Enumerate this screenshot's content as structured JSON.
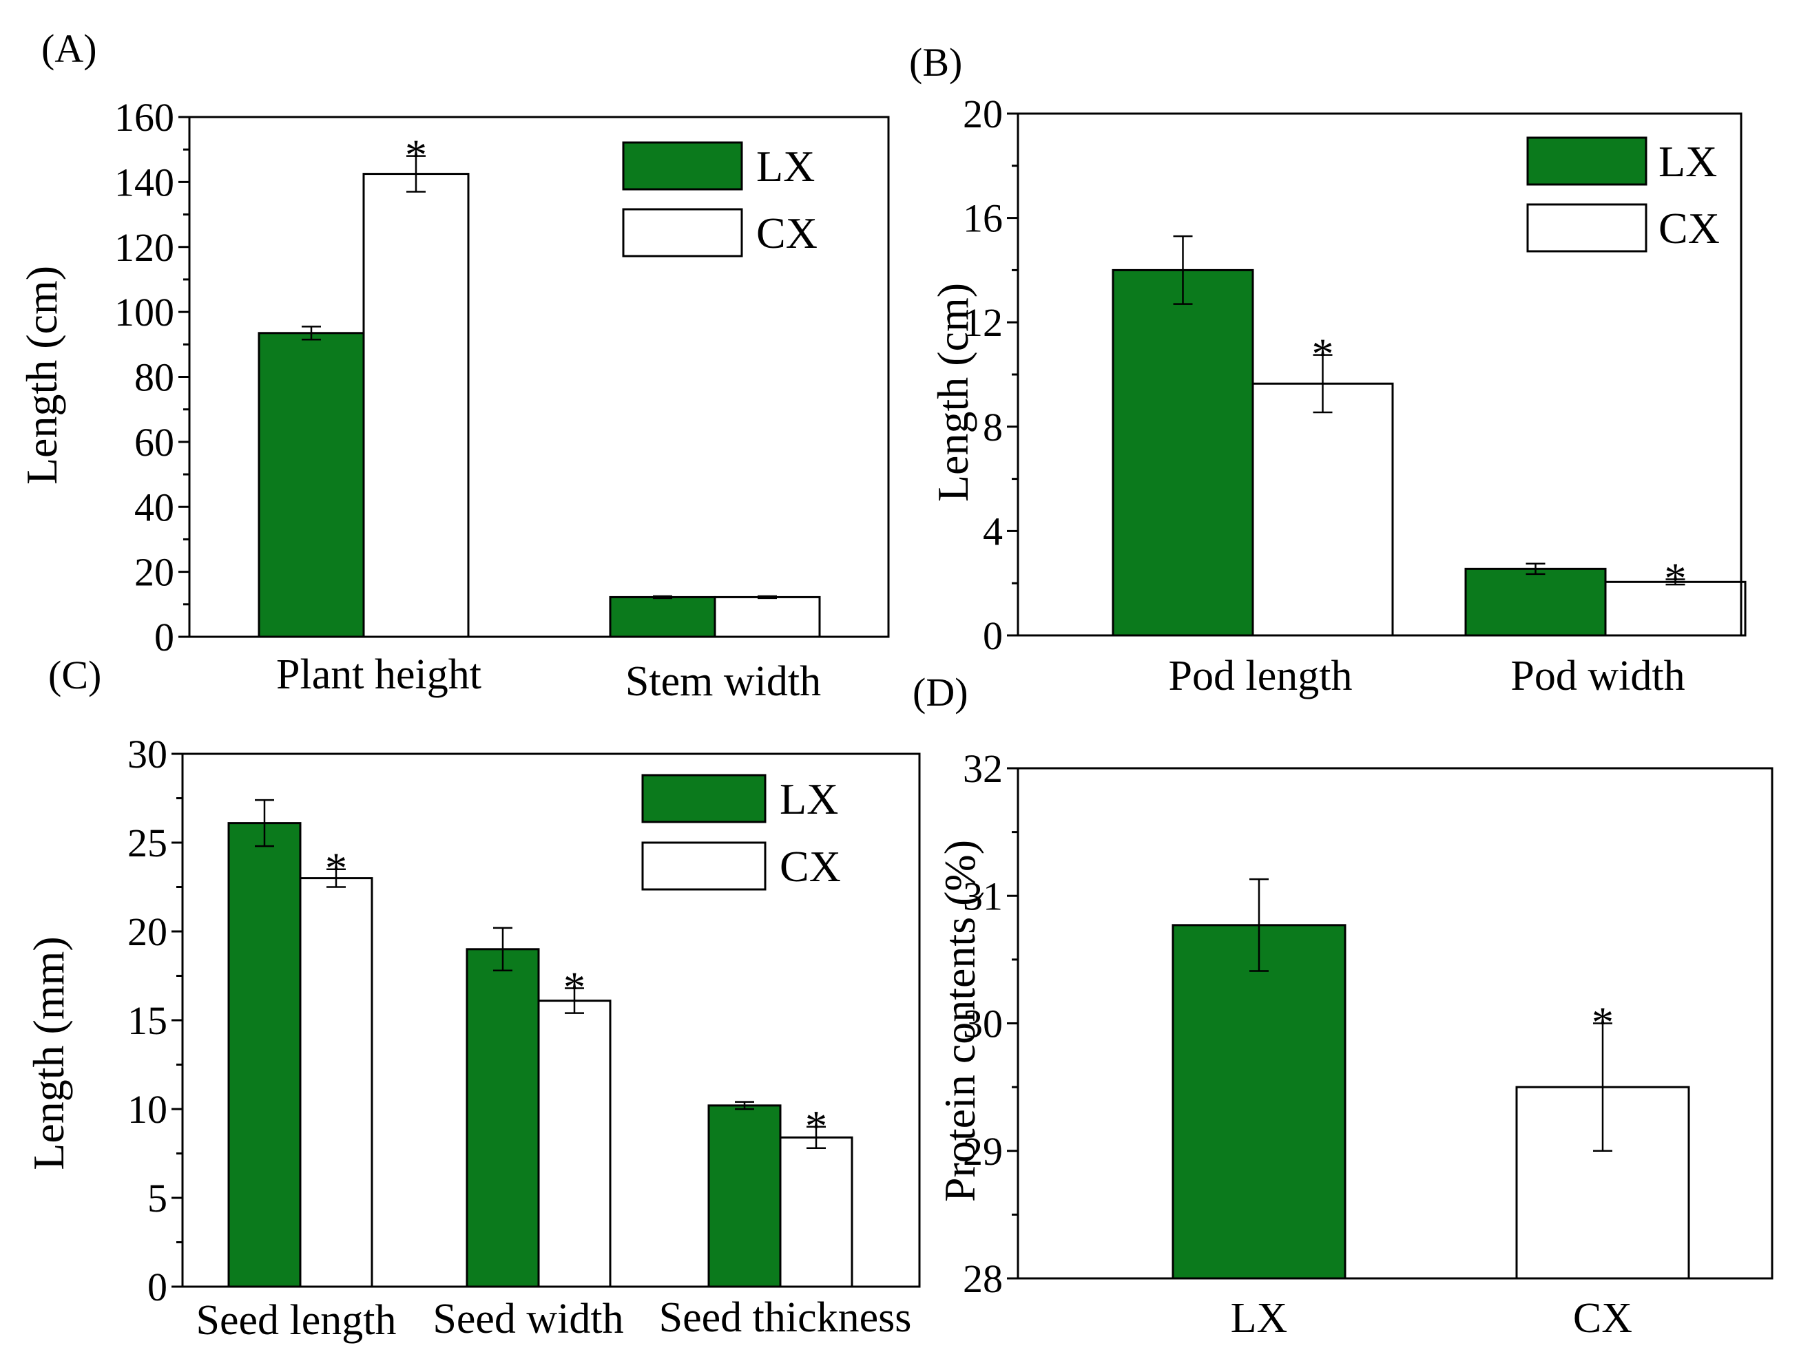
{
  "colors": {
    "LX": "#0b7a1c",
    "CX": "#ffffff",
    "stroke": "#000000"
  },
  "chart_data": [
    {
      "id": "A",
      "type": "bar",
      "panel_label": "(A)",
      "ylabel": "Length (cm)",
      "ylim": [
        0,
        160
      ],
      "yticks": [
        "0",
        "20",
        "40",
        "60",
        "80",
        "100",
        "120",
        "140",
        "160"
      ],
      "categories": [
        "Plant height",
        "Stem width"
      ],
      "series": [
        {
          "name": "LX",
          "values": [
            93.5,
            12.2
          ],
          "errors": [
            2.0,
            0.3
          ],
          "stars": [
            false,
            false
          ]
        },
        {
          "name": "CX",
          "values": [
            142.5,
            12.2
          ],
          "errors": [
            5.5,
            0.3
          ],
          "stars": [
            true,
            false
          ]
        }
      ],
      "legend": [
        "LX",
        "CX"
      ],
      "legend_position": "top-right"
    },
    {
      "id": "B",
      "type": "bar",
      "panel_label": "(B)",
      "ylabel": "Length (cm)",
      "ylim": [
        0,
        20
      ],
      "yticks": [
        "0",
        "4",
        "8",
        "12",
        "16",
        "20"
      ],
      "categories": [
        "Pod length",
        "Pod width"
      ],
      "series": [
        {
          "name": "LX",
          "values": [
            14.0,
            2.55
          ],
          "errors": [
            1.3,
            0.2
          ],
          "stars": [
            false,
            false
          ]
        },
        {
          "name": "CX",
          "values": [
            9.65,
            2.05
          ],
          "errors": [
            1.1,
            0.1
          ],
          "stars": [
            true,
            true
          ]
        }
      ],
      "legend": [
        "LX",
        "CX"
      ],
      "legend_position": "top-right"
    },
    {
      "id": "C",
      "type": "bar",
      "panel_label": "(C)",
      "ylabel": "Length (mm)",
      "ylim": [
        0,
        30
      ],
      "yticks": [
        "0",
        "5",
        "10",
        "15",
        "20",
        "25",
        "30"
      ],
      "categories": [
        "Seed length",
        "Seed width",
        "Seed thickness"
      ],
      "series": [
        {
          "name": "LX",
          "values": [
            26.1,
            19.0,
            10.2
          ],
          "errors": [
            1.3,
            1.2,
            0.2
          ],
          "stars": [
            false,
            false,
            false
          ]
        },
        {
          "name": "CX",
          "values": [
            23.0,
            16.1,
            8.4
          ],
          "errors": [
            0.5,
            0.7,
            0.6
          ],
          "stars": [
            true,
            true,
            true
          ]
        }
      ],
      "legend": [
        "LX",
        "CX"
      ],
      "legend_position": "top-right"
    },
    {
      "id": "D",
      "type": "bar",
      "panel_label": "(D)",
      "ylabel": "Protein contents (%)",
      "ylim": [
        28,
        32
      ],
      "yticks": [
        "28",
        "29",
        "30",
        "31",
        "32"
      ],
      "categories": [
        "LX",
        "CX"
      ],
      "values": [
        30.77,
        29.5
      ],
      "errors": [
        0.36,
        0.5
      ],
      "stars": [
        false,
        true
      ],
      "bar_series": [
        "LX",
        "CX"
      ]
    }
  ]
}
